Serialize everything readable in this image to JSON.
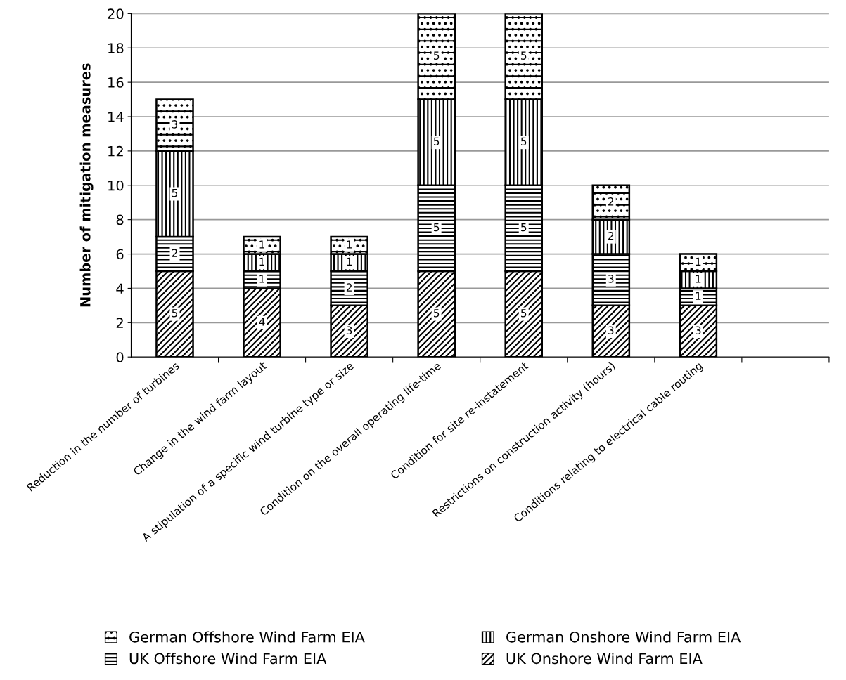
{
  "chart_data": {
    "type": "bar",
    "stacked": true,
    "ylabel": "Number of mitigation measures",
    "categories": [
      "Reduction in the number of turbines",
      "Change in the wind farm layout",
      "A stipulation of a specific wind turbine type or size",
      "Condition on the overall operating life-time",
      "Condition for site re-instatement",
      "Restrictions on construction activity (hours)",
      "Conditions relating to electrical cable routing",
      null
    ],
    "series": [
      {
        "name": "UK Onshore Wind Farm EIA",
        "color": "#000000",
        "values": [
          5,
          4,
          3,
          5,
          5,
          3,
          3,
          null
        ]
      },
      {
        "name": "UK Offshore Wind Farm EIA",
        "color": "#000000",
        "values": [
          2,
          1,
          2,
          5,
          5,
          3,
          1,
          null
        ]
      },
      {
        "name": "German Onshore Wind Farm EIA",
        "color": "#000000",
        "values": [
          5,
          1,
          1,
          5,
          5,
          2,
          1,
          null
        ]
      },
      {
        "name": "German Offshore Wind Farm EIA",
        "color": "#000000",
        "values": [
          3,
          1,
          1,
          5,
          5,
          2,
          1,
          null
        ]
      }
    ],
    "ylim": [
      0,
      20
    ],
    "yticks": [
      0,
      2,
      4,
      6,
      8,
      10,
      12,
      14,
      16,
      18,
      20
    ],
    "grid": "y",
    "legend": "bottom",
    "data_labels": true
  }
}
